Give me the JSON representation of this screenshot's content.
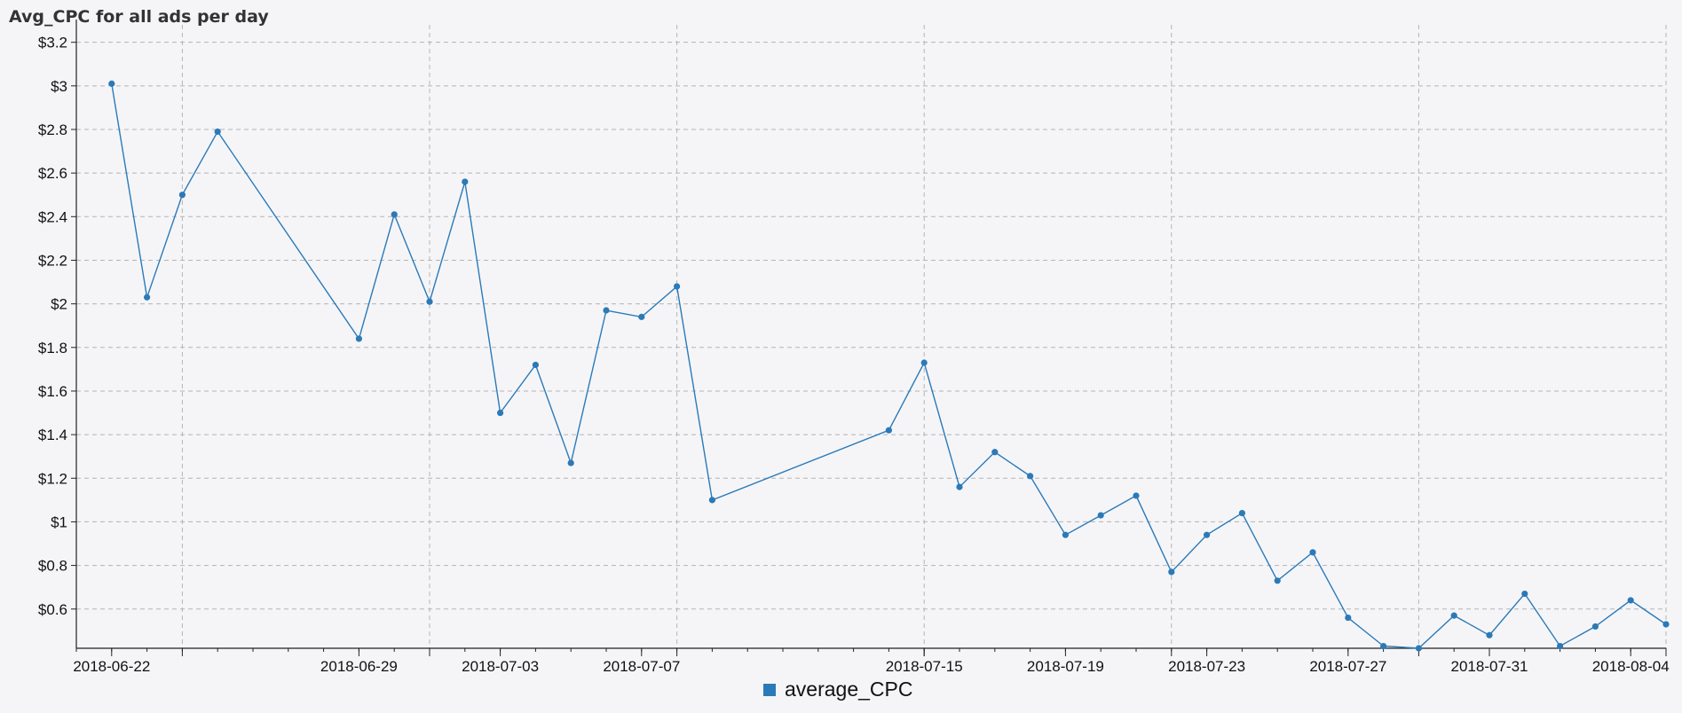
{
  "chart_data": {
    "type": "line",
    "title": "Avg_CPC for all ads per day",
    "xlabel": "",
    "ylabel": "",
    "ylim": [
      0.42,
      3.28
    ],
    "xlim": [
      "2018-06-21",
      "2018-08-05"
    ],
    "grid": true,
    "legend_position": "bottom-center",
    "color": "#2b7ab7",
    "y_ticks": [
      "$0.6",
      "$0.8",
      "$1",
      "$1.2",
      "$1.4",
      "$1.6",
      "$1.8",
      "$2",
      "$2.2",
      "$2.4",
      "$2.6",
      "$2.8",
      "$3",
      "$3.2"
    ],
    "y_tick_values": [
      0.6,
      0.8,
      1.0,
      1.2,
      1.4,
      1.6,
      1.8,
      2.0,
      2.2,
      2.4,
      2.6,
      2.8,
      3.0,
      3.2
    ],
    "x_tick_labels": [
      "2018-06-22",
      "2018-06-29",
      "2018-07-03",
      "2018-07-07",
      "2018-07-15",
      "2018-07-19",
      "2018-07-23",
      "2018-07-27",
      "2018-07-31",
      "2018-08-04"
    ],
    "x_grid_dates": [
      "2018-06-24",
      "2018-07-01",
      "2018-07-08",
      "2018-07-15",
      "2018-07-22",
      "2018-07-29",
      "2018-08-05"
    ],
    "series": [
      {
        "name": "average_CPC",
        "x": [
          "2018-06-22",
          "2018-06-23",
          "2018-06-24",
          "2018-06-25",
          "2018-06-29",
          "2018-06-30",
          "2018-07-01",
          "2018-07-02",
          "2018-07-03",
          "2018-07-04",
          "2018-07-05",
          "2018-07-06",
          "2018-07-07",
          "2018-07-08",
          "2018-07-09",
          "2018-07-14",
          "2018-07-15",
          "2018-07-16",
          "2018-07-17",
          "2018-07-18",
          "2018-07-19",
          "2018-07-20",
          "2018-07-21",
          "2018-07-22",
          "2018-07-23",
          "2018-07-24",
          "2018-07-25",
          "2018-07-26",
          "2018-07-27",
          "2018-07-28",
          "2018-07-29",
          "2018-07-30",
          "2018-07-31",
          "2018-08-01",
          "2018-08-02",
          "2018-08-03",
          "2018-08-04",
          "2018-08-05"
        ],
        "values": [
          3.01,
          2.03,
          2.5,
          2.79,
          1.84,
          2.41,
          2.01,
          2.56,
          1.5,
          1.72,
          1.27,
          1.97,
          1.94,
          2.08,
          1.1,
          1.42,
          1.73,
          1.16,
          1.32,
          1.21,
          0.94,
          1.03,
          1.12,
          0.77,
          0.94,
          1.04,
          0.73,
          0.86,
          0.56,
          0.43,
          0.42,
          0.57,
          0.48,
          0.67,
          0.43,
          0.52,
          0.64,
          0.53
        ]
      }
    ]
  }
}
